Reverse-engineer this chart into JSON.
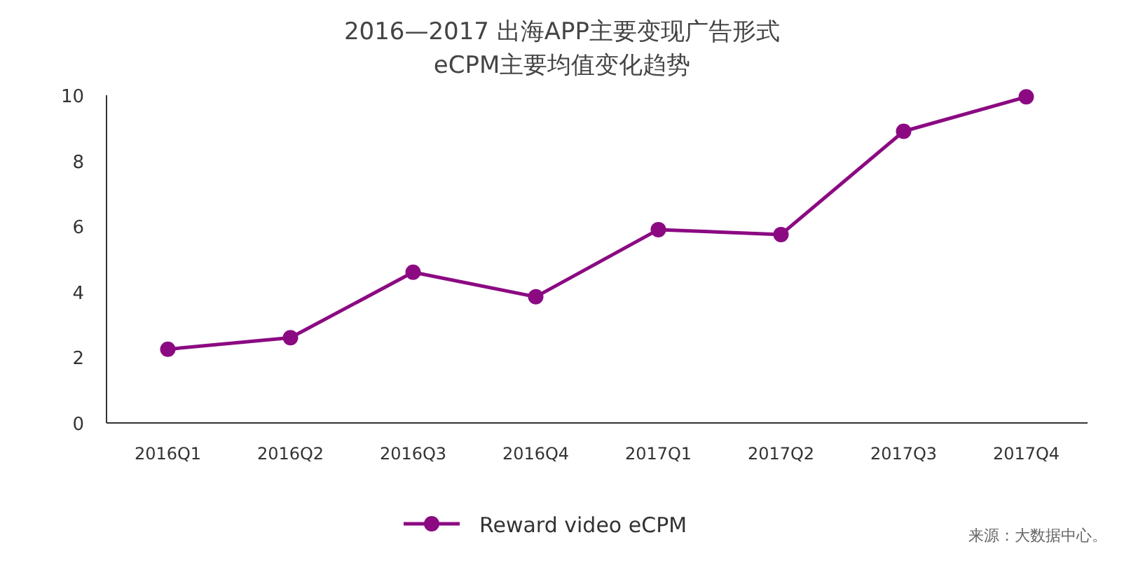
{
  "chart_data": {
    "type": "line",
    "title": "2016—2017 出海APP主要变现广告形式\neCPM主要均值变化趋势",
    "categories": [
      "2016Q1",
      "2016Q2",
      "2016Q3",
      "2016Q4",
      "2017Q1",
      "2017Q2",
      "2017Q3",
      "2017Q4"
    ],
    "series": [
      {
        "name": "Reward video eCPM",
        "color": "#8b0a82",
        "values": [
          2.25,
          2.6,
          4.6,
          3.85,
          5.9,
          5.75,
          8.9,
          9.95
        ]
      }
    ],
    "ylim": [
      0,
      10
    ],
    "yticks": [
      0,
      2,
      4,
      6,
      8,
      10
    ],
    "marker": "circle",
    "legend": "bottom",
    "annotations": [
      "来源：大数据中心。"
    ]
  }
}
